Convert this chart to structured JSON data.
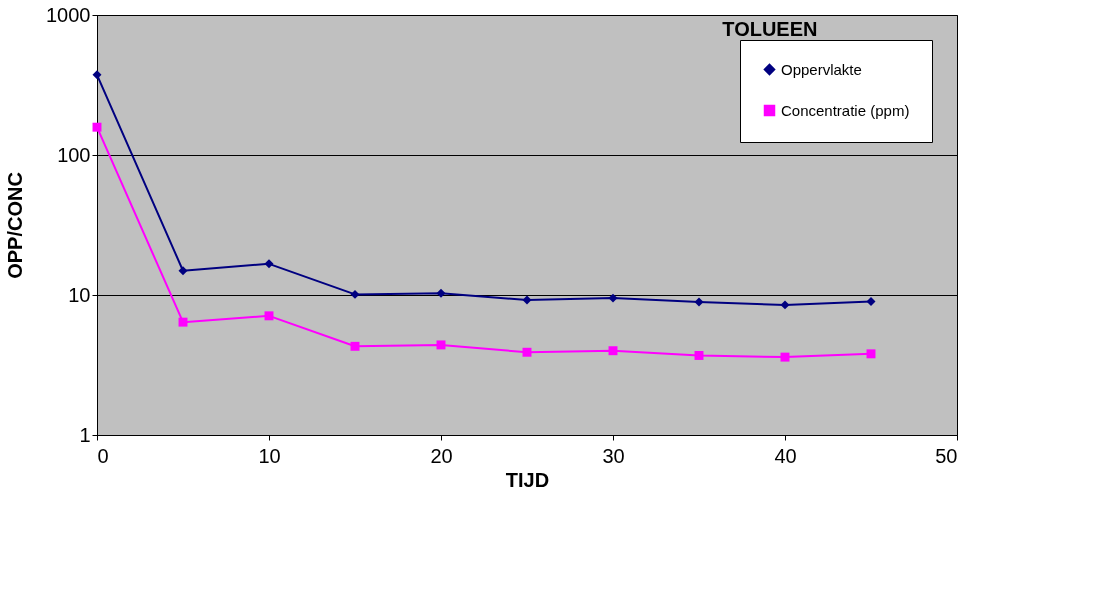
{
  "chart_data": {
    "type": "line",
    "title": "TOLUEEN",
    "xlabel": "TIJD",
    "ylabel": "OPP/CONC",
    "x": [
      0,
      5,
      10,
      15,
      20,
      25,
      30,
      35,
      40,
      45
    ],
    "series": [
      {
        "name": "Oppervlakte",
        "color": "#000080",
        "marker": "diamond",
        "values": [
          374,
          14.9,
          16.7,
          10.1,
          10.3,
          9.2,
          9.5,
          8.9,
          8.5,
          9.0
        ]
      },
      {
        "name": "Concentratie (ppm)",
        "color": "#ff00ff",
        "marker": "square",
        "values": [
          158,
          6.4,
          7.1,
          4.3,
          4.4,
          3.9,
          4.0,
          3.7,
          3.6,
          3.8
        ]
      }
    ],
    "xlim": [
      0,
      50
    ],
    "xticks": [
      0,
      10,
      20,
      30,
      40,
      50
    ],
    "ylim": [
      1,
      1000
    ],
    "yticks": [
      1,
      10,
      100,
      1000
    ],
    "log": "y",
    "grid": "y",
    "legend": "top right",
    "line_style": "solid"
  }
}
